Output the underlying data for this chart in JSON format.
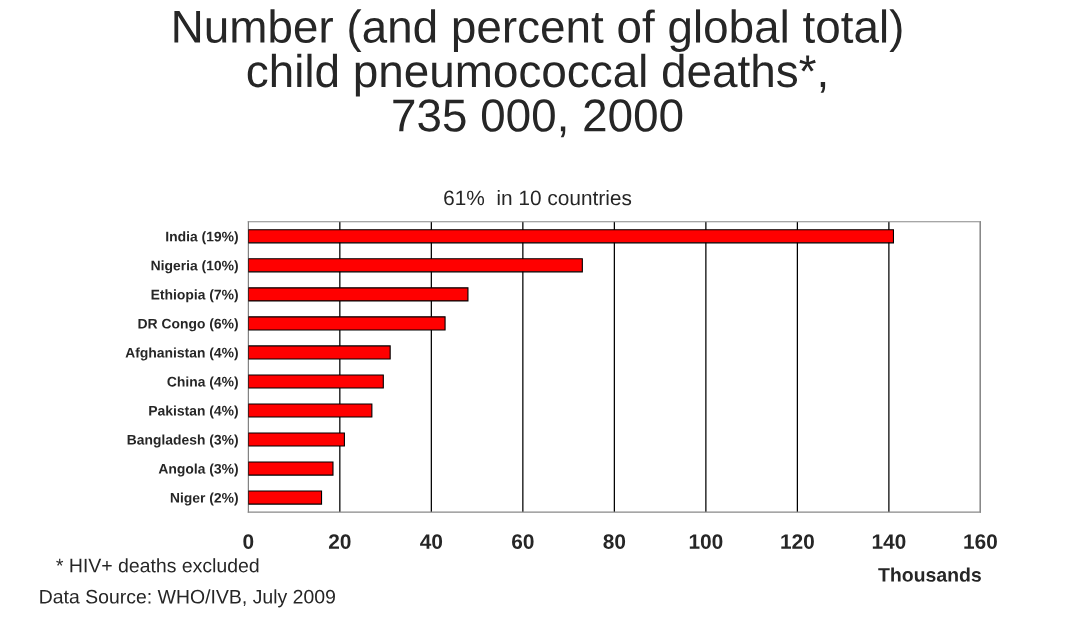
{
  "chart_data": {
    "type": "bar",
    "orientation": "horizontal",
    "title": "Number (and percent of global total)\nchild pneumococcal deaths*,\n735 000, 2000",
    "subtitle": "61%  in 10 countries",
    "xlabel": "Thousands",
    "categories": [
      "India (19%)",
      "Nigeria (10%)",
      "Ethiopia (7%)",
      "DR Congo (6%)",
      "Afghanistan (4%)",
      "China (4%)",
      "Pakistan (4%)",
      "Bangladesh (3%)",
      "Angola (3%)",
      "Niger (2%)"
    ],
    "values": [
      141,
      73,
      48,
      43,
      31,
      29.5,
      27,
      21,
      18.5,
      16
    ],
    "color": "#ff0000",
    "xlim": [
      0,
      160
    ],
    "xticks": [
      0,
      20,
      40,
      60,
      80,
      100,
      120,
      140,
      160
    ],
    "grid": "x",
    "annotations": [
      "* HIV+ deaths excluded",
      "Data Source: WHO/IVB, July 2009"
    ]
  }
}
